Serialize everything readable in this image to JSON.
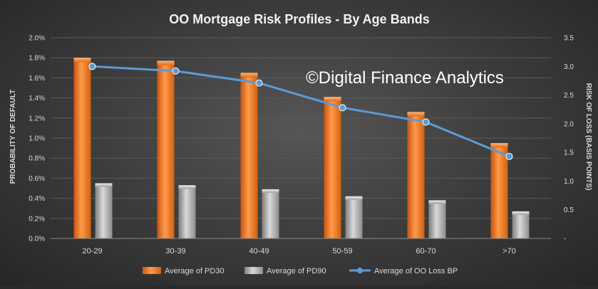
{
  "watermark": "©Digital Finance Analytics",
  "colors": {
    "pd30": "#f07b2a",
    "pd90": "#a6a6a6",
    "loss_line": "#5b9bd5",
    "text": "#d9d9d9",
    "title": "#f2f2f2",
    "grid": "#5a5a5a"
  },
  "chart_data": {
    "type": "bar",
    "title": "OO Mortgage Risk Profiles - By Age Bands",
    "categories": [
      "20-29",
      "30-39",
      "40-49",
      "50-59",
      "60-70",
      ">70"
    ],
    "ylabel": "PROBABILITY OF DEFAULT",
    "ylabel_right": "RISK OF LOSS (BASIS POINTS)",
    "ylim": [
      0,
      2.0
    ],
    "ylim_right": [
      0,
      3.5
    ],
    "y_ticks": [
      "0.0%",
      "0.2%",
      "0.4%",
      "0.6%",
      "0.8%",
      "1.0%",
      "1.2%",
      "1.4%",
      "1.6%",
      "1.8%",
      "2.0%"
    ],
    "y_ticks_right": [
      "-",
      "0.5",
      "1.0",
      "1.5",
      "2.0",
      "2.5",
      "3.0",
      "3.5"
    ],
    "grid": true,
    "legend_position": "bottom",
    "series": [
      {
        "name": "Average of PD30",
        "type": "bar",
        "axis": "left",
        "unit": "%",
        "values": [
          1.8,
          1.77,
          1.65,
          1.41,
          1.26,
          0.95
        ]
      },
      {
        "name": "Average of PD90",
        "type": "bar",
        "axis": "left",
        "unit": "%",
        "values": [
          0.55,
          0.53,
          0.49,
          0.42,
          0.38,
          0.27
        ]
      },
      {
        "name": "Average of OO Loss BP",
        "type": "line",
        "axis": "right",
        "unit": "bp",
        "values": [
          3.0,
          2.92,
          2.71,
          2.28,
          2.03,
          1.43
        ]
      }
    ]
  }
}
